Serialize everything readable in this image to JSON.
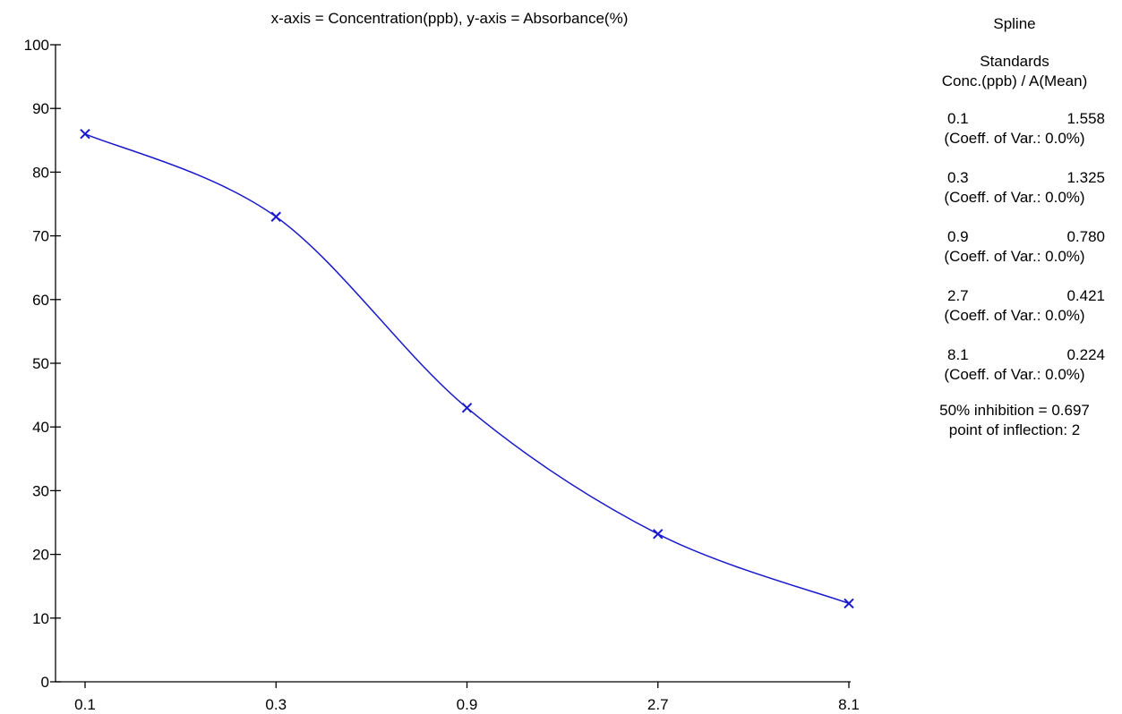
{
  "chart_data": {
    "type": "line",
    "title": "x-axis = Concentration(ppb), y-axis = Absorbance(%)",
    "xlabel": "",
    "ylabel": "",
    "categories": [
      "0.1",
      "0.3",
      "0.9",
      "2.7",
      "8.1"
    ],
    "x": [
      0.1,
      0.3,
      0.9,
      2.7,
      8.1
    ],
    "x_scale": "log",
    "ylim": [
      0,
      100
    ],
    "yticks": [
      0,
      10,
      20,
      30,
      40,
      50,
      60,
      70,
      80,
      90,
      100
    ],
    "series": [
      {
        "values": [
          86,
          73,
          43,
          23.2,
          12.3
        ],
        "marker": "x",
        "color": "#1a1acc"
      }
    ],
    "grid": false
  },
  "side_panel": {
    "method": "Spline",
    "header_line1": "Standards",
    "header_line2": "Conc.(ppb) / A(Mean)",
    "standards": [
      {
        "conc": "0.1",
        "mean": "1.558",
        "cv": "(Coeff. of Var.: 0.0%)"
      },
      {
        "conc": "0.3",
        "mean": "1.325",
        "cv": "(Coeff. of Var.: 0.0%)"
      },
      {
        "conc": "0.9",
        "mean": "0.780",
        "cv": "(Coeff. of Var.: 0.0%)"
      },
      {
        "conc": "2.7",
        "mean": "0.421",
        "cv": "(Coeff. of Var.: 0.0%)"
      },
      {
        "conc": "8.1",
        "mean": "0.224",
        "cv": "(Coeff. of Var.: 0.0%)"
      }
    ],
    "inhibition": "50% inhibition = 0.697",
    "inflection": "point of inflection: 2"
  }
}
